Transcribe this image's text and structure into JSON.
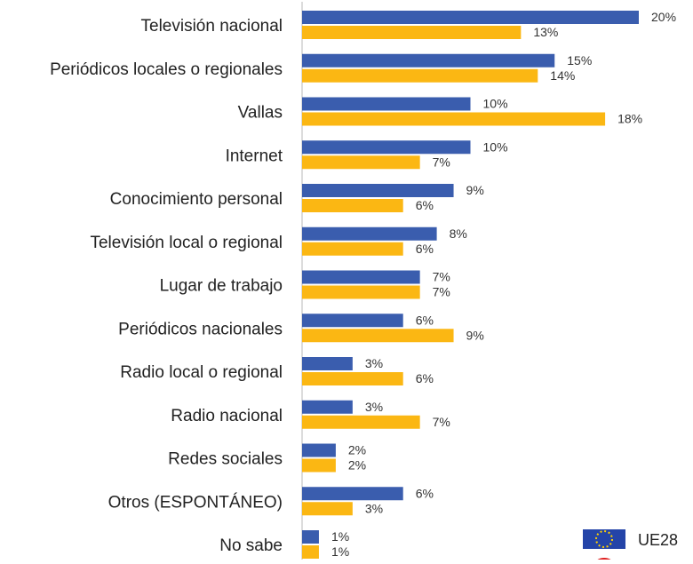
{
  "chart_data": {
    "type": "bar",
    "orientation": "horizontal",
    "categories": [
      "Televisión nacional",
      "Periódicos locales o regionales",
      "Vallas",
      "Internet",
      "Conocimiento personal",
      "Televisión local o regional",
      "Lugar de trabajo",
      "Periódicos nacionales",
      "Radio local o regional",
      "Radio nacional",
      "Redes sociales",
      "Otros (ESPONTÁNEO)",
      "No sabe"
    ],
    "series": [
      {
        "name": "UE28",
        "color": "#3a5dae",
        "values": [
          20,
          15,
          10,
          10,
          9,
          8,
          7,
          6,
          3,
          3,
          2,
          6,
          1
        ],
        "labels": [
          "20%",
          "15%",
          "10%",
          "10%",
          "9%",
          "8%",
          "7%",
          "6%",
          "3%",
          "3%",
          "2%",
          "6%",
          "1%"
        ]
      },
      {
        "name": "",
        "color": "#fbb713",
        "values": [
          13,
          14,
          18,
          7,
          6,
          6,
          7,
          9,
          6,
          7,
          2,
          3,
          1
        ],
        "labels": [
          "13%",
          "14%",
          "18%",
          "7%",
          "6%",
          "6%",
          "7%",
          "9%",
          "6%",
          "7%",
          "2%",
          "3%",
          "1%"
        ]
      }
    ],
    "unit": "%",
    "xlim": [
      0,
      20
    ],
    "grid": false,
    "legend": {
      "position": "bottom-right",
      "items": [
        {
          "label": "UE28",
          "icon": "eu-flag-icon"
        }
      ]
    },
    "axis_line_color": "#b8b8b8"
  }
}
